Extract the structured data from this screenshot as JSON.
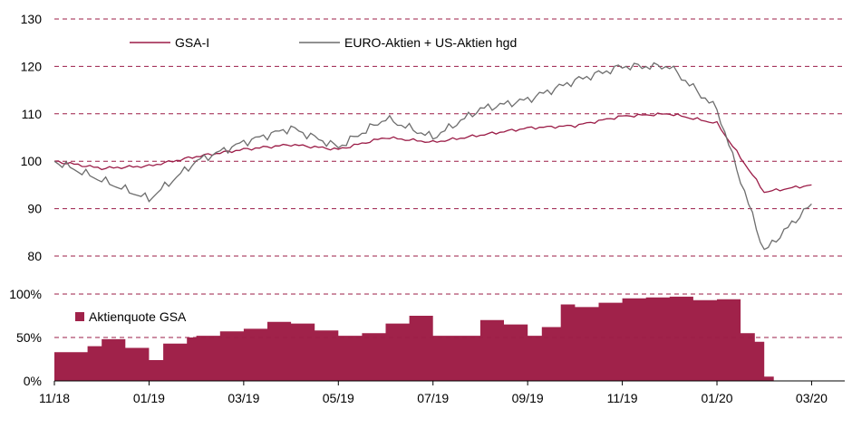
{
  "colors": {
    "gsa": "#9b1c47",
    "benchmark": "#6d6d6d",
    "area": "#a0224a",
    "grid": "#9b1c47"
  },
  "chart_data": [
    {
      "type": "line",
      "title": "",
      "xlabel": "",
      "ylabel": "",
      "ylim": [
        80,
        130
      ],
      "yticks": [
        "130",
        "120",
        "110",
        "100",
        "90",
        "80"
      ],
      "legend": "top-left",
      "x_months": [
        0,
        1,
        2,
        3,
        4,
        5,
        6,
        7,
        8,
        9,
        10,
        11,
        12,
        13,
        14,
        15,
        16
      ],
      "series": [
        {
          "name": "GSA-I",
          "values": [
            100,
            98.5,
            99,
            101,
            102.5,
            103.5,
            102.5,
            105,
            104,
            105.5,
            107,
            107.5,
            109.5,
            110,
            108,
            93.5,
            95
          ]
        },
        {
          "name": "EURO-Aktien + US-Aktien hgd",
          "values": [
            100,
            96,
            92,
            100,
            104,
            107,
            103,
            109,
            105,
            111,
            113,
            117,
            120,
            120,
            111,
            81,
            91
          ]
        }
      ]
    },
    {
      "type": "area",
      "title": "",
      "ylim": [
        0,
        100
      ],
      "yticks": [
        "100%",
        "50%",
        "0%"
      ],
      "legend": "top-left",
      "x_months": [
        0,
        0.7,
        1,
        1.5,
        2,
        2.3,
        2.8,
        3,
        3.5,
        4,
        4.5,
        5,
        5.5,
        6,
        6.5,
        7,
        7.5,
        8,
        8.5,
        9,
        9.5,
        10,
        10.3,
        10.7,
        11,
        11.5,
        12,
        12.5,
        13,
        13.5,
        14,
        14.5,
        14.8,
        15,
        15.2,
        16
      ],
      "series": [
        {
          "name": "Aktienquote GSA",
          "values": [
            33,
            40,
            48,
            38,
            24,
            43,
            50,
            52,
            57,
            60,
            68,
            66,
            58,
            52,
            55,
            66,
            75,
            52,
            52,
            70,
            65,
            52,
            62,
            88,
            85,
            90,
            95,
            96,
            97,
            93,
            94,
            55,
            45,
            5,
            0,
            0
          ]
        }
      ]
    }
  ],
  "x_ticks": [
    "11/18",
    "01/19",
    "03/19",
    "05/19",
    "07/19",
    "09/19",
    "11/19",
    "01/20",
    "03/20"
  ]
}
